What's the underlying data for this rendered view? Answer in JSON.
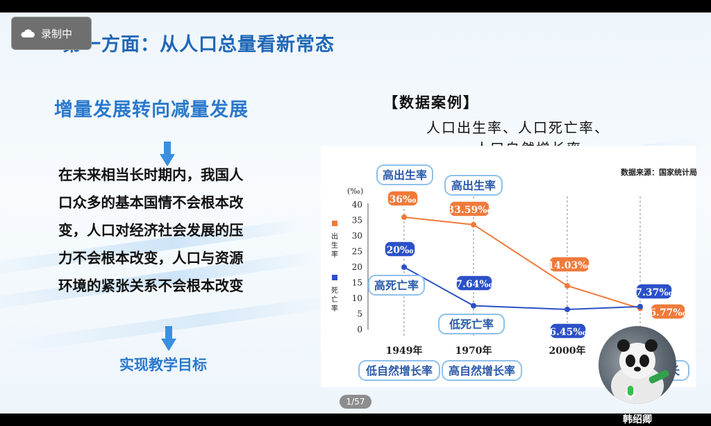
{
  "recording": {
    "label": "录制中",
    "icon": "cloud-icon"
  },
  "slide": {
    "title": "第一方面：从人口总量看新常态",
    "sub_heading": "增量发展转向减量发展",
    "body_lines": [
      "在未来相当长时期内，我国人",
      "口众多的基本国情不会根本改",
      "变，人口对经济社会发展的压",
      "力不会根本改变，人口与资源",
      "环境的紧张关系不会根本改变"
    ],
    "goal": "实现教学目标",
    "case_title": "【数据案例】",
    "case_sub1": "人口出生率、人口死亡率、",
    "case_sub2": "人口自然增长率",
    "colors": {
      "title": "#1f67b5",
      "accent": "#2b79cc",
      "birth": "#f07a3a",
      "death": "#2b50c8"
    }
  },
  "chart_data": {
    "type": "line",
    "source": "数据来源：国家统计局",
    "yunit": "(‰)",
    "ylim": [
      0,
      40
    ],
    "yticks": [
      "0",
      "5",
      "10",
      "15",
      "20",
      "25",
      "30",
      "35",
      "40"
    ],
    "categories": [
      "1949年",
      "1970年",
      "2000年",
      ""
    ],
    "legend": [
      {
        "name": "出生率",
        "color": "#f07a3a"
      },
      {
        "name": "死亡率",
        "color": "#2b50c8"
      }
    ],
    "series": [
      {
        "name": "出生率",
        "color": "#f07a3a",
        "values": [
          36,
          33.59,
          14.03,
          6.77
        ],
        "labels": [
          "36‰",
          "33.59‰",
          "14.03‰",
          "6.77‰"
        ]
      },
      {
        "name": "死亡率",
        "color": "#2b50c8",
        "values": [
          20,
          7.64,
          6.45,
          7.37
        ],
        "labels": [
          "20‰",
          "7.64‰",
          "6.45‰",
          "7.37‰"
        ]
      }
    ],
    "annotations": {
      "high_birth_1": "高出生率",
      "high_birth_2": "高出生率",
      "high_death": "高死亡率",
      "low_death": "低死亡率",
      "low_growth": "低自然增长率",
      "high_growth": "高自然增长率",
      "last_partial": "长"
    }
  },
  "page_indicator": "1/57",
  "participant": {
    "name": "韩绍卿",
    "icon": "microphone-icon"
  }
}
